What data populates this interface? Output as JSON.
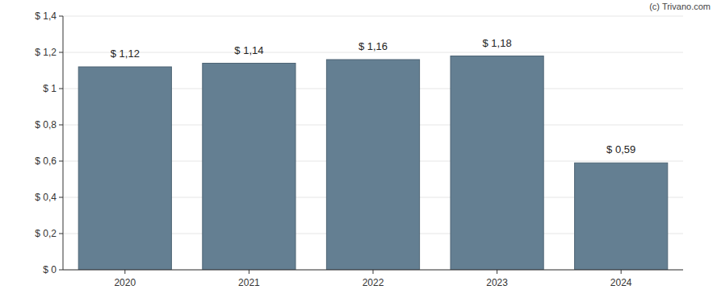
{
  "chart_data": {
    "type": "bar",
    "annotation": "(c) Trivano.com",
    "categories": [
      "2020",
      "2021",
      "2022",
      "2023",
      "2024"
    ],
    "values": [
      1.12,
      1.14,
      1.16,
      1.18,
      0.59
    ],
    "value_labels": [
      "$ 1,12",
      "$ 1,14",
      "$ 1,16",
      "$ 1,18",
      "$ 0,59"
    ],
    "color": "#647f92",
    "ylim": [
      0,
      1.4
    ],
    "yticks": [
      {
        "value": 0,
        "label": "$ 0"
      },
      {
        "value": 0.2,
        "label": "$ 0,2"
      },
      {
        "value": 0.4,
        "label": "$ 0,4"
      },
      {
        "value": 0.6,
        "label": "$ 0,6"
      },
      {
        "value": 0.8,
        "label": "$ 0,8"
      },
      {
        "value": 1,
        "label": "$ 1"
      },
      {
        "value": 1.2,
        "label": "$ 1,2"
      },
      {
        "value": 1.4,
        "label": "$ 1,4"
      }
    ],
    "grid": true,
    "data_labels": true
  }
}
